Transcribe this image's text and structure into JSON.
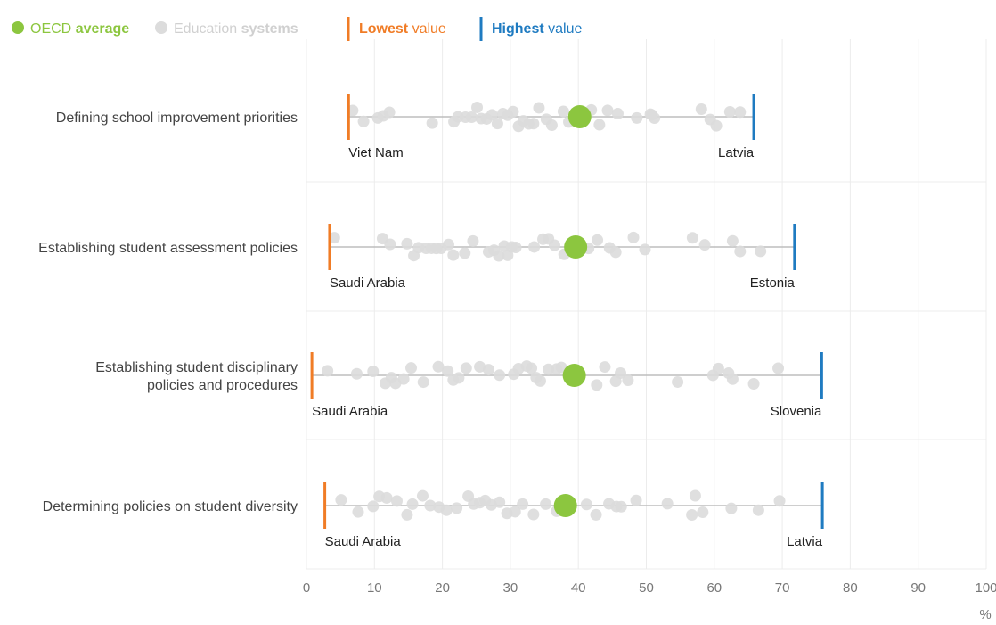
{
  "legend": {
    "oecd_prefix": "OECD",
    "oecd_bold": "average",
    "systems_prefix": "Education",
    "systems_bold": "systems",
    "lowest_bold": "Lowest",
    "lowest_suffix": "value",
    "highest_bold": "Highest",
    "highest_suffix": "value"
  },
  "colors": {
    "oecd": "#8cc63f",
    "systems": "#dcdcdc",
    "lowest": "#f07c26",
    "highest": "#1f7bc1",
    "range_line": "#bdbdbd",
    "grid": "#ececec",
    "axis_text": "#777777",
    "category_text": "#444444"
  },
  "chart_data": {
    "type": "scatter",
    "xlim": [
      0,
      100
    ],
    "x_ticks": [
      0,
      10,
      20,
      30,
      40,
      50,
      60,
      70,
      80,
      90,
      100
    ],
    "x_unit": "%",
    "categories": [
      {
        "label": "Defining school improvement priorities",
        "oecd_average": 40.2,
        "lowest": {
          "value": 6.2,
          "country": "Viet Nam"
        },
        "highest": {
          "value": 65.8,
          "country": "Latvia"
        },
        "systems": [
          6.8,
          8.4,
          10.5,
          11.3,
          12.2,
          18.5,
          21.7,
          22.3,
          23.4,
          24.3,
          25.1,
          25.7,
          26.5,
          27.3,
          28.1,
          28.9,
          29.6,
          30.4,
          31.2,
          31.9,
          32.7,
          33.4,
          34.2,
          35.3,
          36.1,
          37.8,
          38.6,
          41.9,
          43.1,
          44.3,
          45.8,
          48.6,
          50.6,
          50.8,
          51.2,
          58.1,
          59.4,
          60.3,
          62.3,
          63.8
        ]
      },
      {
        "label": "Establishing student assessment policies",
        "oecd_average": 39.6,
        "lowest": {
          "value": 3.4,
          "country": "Saudi Arabia"
        },
        "highest": {
          "value": 71.8,
          "country": "Estonia"
        },
        "systems": [
          4.1,
          11.2,
          12.3,
          14.8,
          15.8,
          16.5,
          17.6,
          18.4,
          19.1,
          19.8,
          20.9,
          21.6,
          23.3,
          24.5,
          26.8,
          27.6,
          28.3,
          29.1,
          29.6,
          30.2,
          30.8,
          33.5,
          34.8,
          35.6,
          36.5,
          37.9,
          41.5,
          42.8,
          44.6,
          45.5,
          48.1,
          49.8,
          56.8,
          58.6,
          62.7,
          63.8,
          66.8
        ]
      },
      {
        "label": "Establishing student disciplinary policies and procedures",
        "oecd_average": 39.4,
        "lowest": {
          "value": 0.8,
          "country": "Saudi Arabia"
        },
        "highest": {
          "value": 75.8,
          "country": "Slovenia"
        },
        "systems": [
          3.1,
          7.4,
          9.8,
          11.6,
          12.5,
          13.1,
          14.3,
          15.4,
          17.2,
          19.4,
          20.8,
          21.6,
          22.4,
          23.5,
          25.5,
          26.8,
          28.4,
          30.5,
          31.2,
          32.4,
          33.1,
          33.8,
          34.4,
          35.6,
          36.8,
          37.5,
          42.7,
          43.9,
          45.5,
          46.2,
          47.3,
          54.6,
          59.8,
          60.6,
          62.1,
          62.7,
          65.8,
          69.4
        ]
      },
      {
        "label": "Determining policies on student diversity",
        "oecd_average": 38.1,
        "lowest": {
          "value": 2.7,
          "country": "Saudi Arabia"
        },
        "highest": {
          "value": 75.9,
          "country": "Latvia"
        },
        "systems": [
          5.1,
          7.6,
          9.8,
          10.7,
          11.8,
          13.3,
          14.8,
          15.6,
          17.1,
          18.2,
          19.5,
          20.6,
          22.1,
          23.8,
          24.6,
          25.5,
          26.3,
          27.2,
          28.4,
          29.5,
          30.7,
          31.8,
          33.4,
          35.2,
          36.8,
          41.2,
          42.6,
          44.5,
          45.6,
          46.3,
          48.5,
          53.1,
          56.7,
          57.2,
          58.3,
          62.5,
          66.5,
          69.6
        ]
      }
    ]
  }
}
